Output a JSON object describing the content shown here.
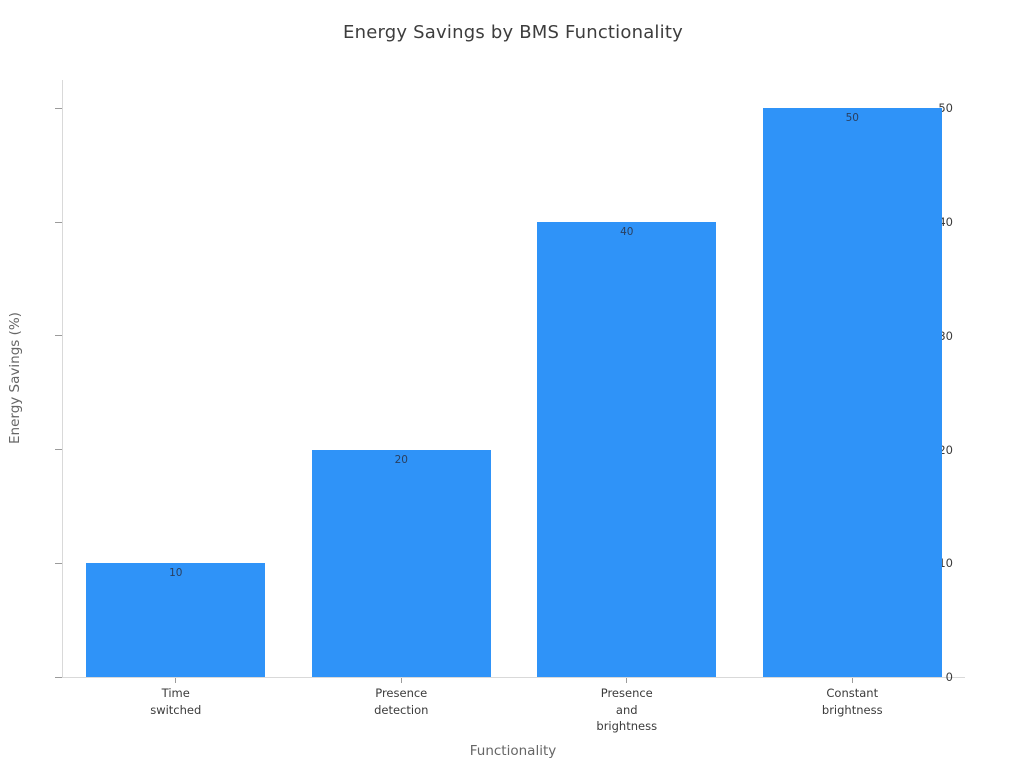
{
  "chart_data": {
    "type": "bar",
    "title": "Energy Savings by BMS Functionality",
    "xlabel": "Functionality",
    "ylabel": "Energy Savings (%)",
    "categories": [
      "Time\nswitched",
      "Presence\ndetection",
      "Presence\nand\nbrightness",
      "Constant\nbrightness"
    ],
    "values": [
      10,
      20,
      40,
      50
    ],
    "yticks": [
      0,
      10,
      20,
      30,
      40,
      50
    ],
    "ylim": [
      0,
      52.5
    ],
    "grid": false,
    "legend_position": "none",
    "colors": {
      "bar": "#2f93f8",
      "bar_value_label": "#2a3f5f",
      "title": "#3d3d3d",
      "axis_title": "#666666",
      "tick_label": "#3b3b3b",
      "axis_line": "#d9d9d9",
      "tick_mark": "#9b9b9b",
      "background": "#ffffff"
    }
  }
}
